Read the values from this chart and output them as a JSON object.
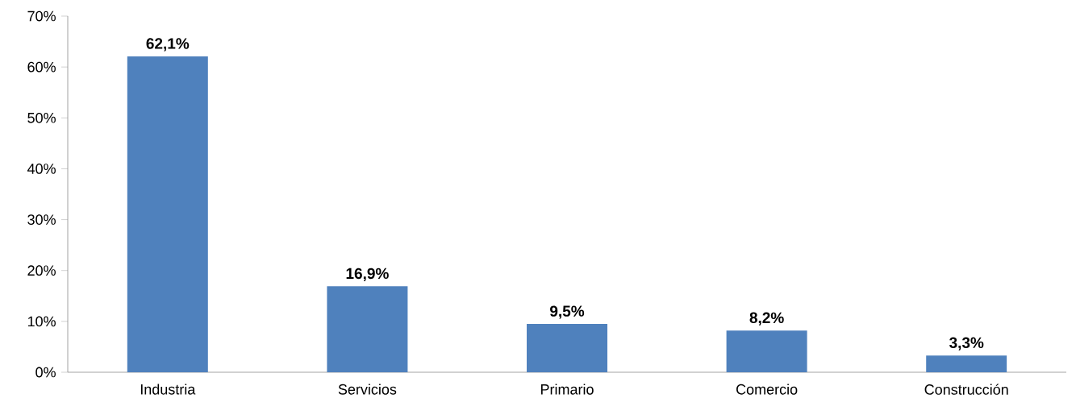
{
  "chart_data": {
    "type": "bar",
    "categories": [
      "Industria",
      "Servicios",
      "Primario",
      "Comercio",
      "Construcción"
    ],
    "values": [
      62.1,
      16.9,
      9.5,
      8.2,
      3.3
    ],
    "value_labels": [
      "62,1%",
      "16,9%",
      "9,5%",
      "8,2%",
      "3,3%"
    ],
    "color": "#4f81bd",
    "ylim": [
      0,
      70
    ],
    "yticks": [
      {
        "value": 0,
        "label": "0%"
      },
      {
        "value": 10,
        "label": "10%"
      },
      {
        "value": 20,
        "label": "20%"
      },
      {
        "value": 30,
        "label": "30%"
      },
      {
        "value": 40,
        "label": "40%"
      },
      {
        "value": 50,
        "label": "50%"
      },
      {
        "value": 60,
        "label": "60%"
      },
      {
        "value": 70,
        "label": "70%"
      }
    ],
    "grid": false
  }
}
